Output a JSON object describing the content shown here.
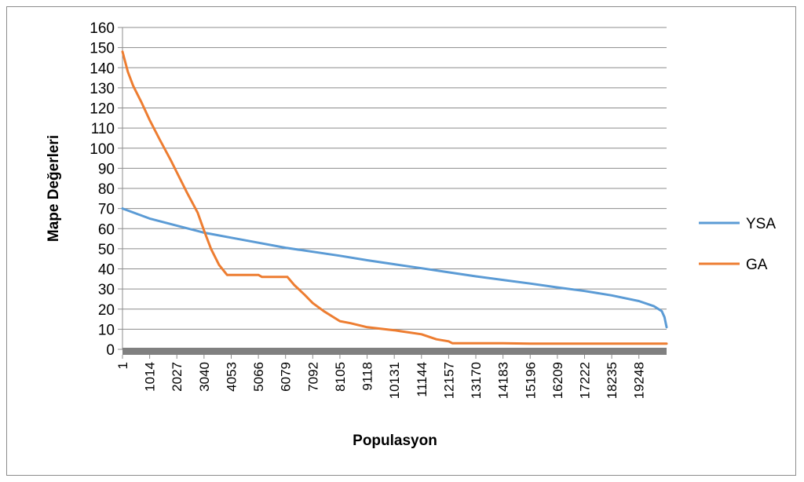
{
  "chart_data": {
    "type": "line",
    "title": "",
    "xlabel": "Populasyon",
    "ylabel": "Mape Değerleri",
    "ylim": [
      0,
      160
    ],
    "xlim": [
      1,
      20280
    ],
    "y_ticks": [
      0,
      10,
      20,
      30,
      40,
      50,
      60,
      70,
      80,
      90,
      100,
      110,
      120,
      130,
      140,
      150,
      160
    ],
    "x_ticks": [
      "1",
      "1014",
      "2027",
      "3040",
      "4053",
      "5066",
      "6079",
      "7092",
      "8105",
      "9118",
      "10131",
      "11144",
      "12157",
      "13170",
      "14183",
      "15196",
      "16209",
      "17222",
      "18235",
      "19248"
    ],
    "grid": "horizontal",
    "legend_position": "right",
    "series": [
      {
        "name": "YSA",
        "color": "#5b9bd5",
        "x": [
          1,
          1014,
          2027,
          3040,
          4053,
          5066,
          6079,
          7092,
          8105,
          9118,
          10131,
          11144,
          12157,
          13170,
          14183,
          15196,
          16209,
          17222,
          18235,
          19248,
          19800,
          20100,
          20200,
          20280
        ],
        "values": [
          70,
          65,
          61.5,
          58,
          55.5,
          53,
          50.5,
          48.5,
          46.5,
          44.3,
          42.3,
          40.3,
          38.3,
          36.3,
          34.5,
          32.7,
          30.8,
          29,
          26.8,
          24,
          21.5,
          19,
          16,
          11
        ]
      },
      {
        "name": "GA",
        "color": "#ed7d31",
        "x": [
          1,
          200,
          400,
          700,
          1014,
          1400,
          1800,
          2027,
          2400,
          2800,
          3040,
          3300,
          3600,
          3900,
          4053,
          4500,
          5066,
          5200,
          5900,
          6150,
          6400,
          6800,
          7092,
          7500,
          8105,
          8500,
          9118,
          10131,
          11144,
          11700,
          12157,
          12300,
          13170,
          14183,
          15196,
          16209,
          17222,
          18235,
          19248,
          20280
        ],
        "values": [
          148,
          138,
          131,
          123,
          114,
          104,
          94,
          88,
          78,
          68,
          59,
          50,
          42,
          37,
          37,
          37,
          37,
          36,
          36,
          36,
          32,
          27,
          23,
          19,
          14,
          13,
          11,
          9.5,
          7.5,
          5,
          4,
          3,
          3,
          3,
          2.8,
          2.8,
          2.8,
          2.8,
          2.8,
          2.8
        ]
      }
    ]
  }
}
